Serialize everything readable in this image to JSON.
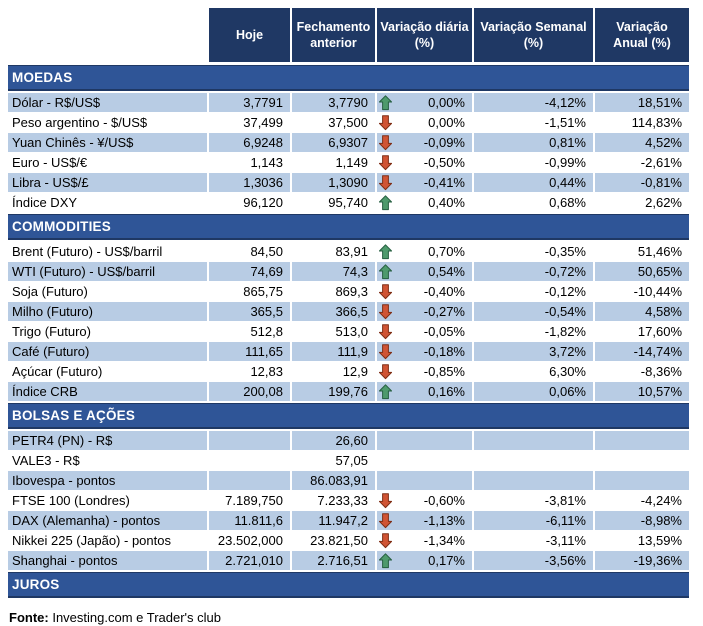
{
  "chart_data": {
    "type": "table",
    "columns": [
      "Hoje",
      "Fechamento anterior",
      "Variação diária (%)",
      "Variação Semanal (%)",
      "Variação Anual (%)"
    ],
    "sections": [
      {
        "title": "MOEDAS",
        "first_row_shaded": true,
        "rows": [
          {
            "label": "Dólar - R$/US$",
            "hoje": "3,7791",
            "prev": "3,7790",
            "arrow": "up",
            "daily": "0,00%",
            "weekly": "-4,12%",
            "annual": "18,51%"
          },
          {
            "label": "Peso argentino - $/US$",
            "hoje": "37,499",
            "prev": "37,500",
            "arrow": "down",
            "daily": "0,00%",
            "weekly": "-1,51%",
            "annual": "114,83%"
          },
          {
            "label": "Yuan Chinês - ¥/US$",
            "hoje": "6,9248",
            "prev": "6,9307",
            "arrow": "down",
            "daily": "-0,09%",
            "weekly": "0,81%",
            "annual": "4,52%"
          },
          {
            "label": "Euro - US$/€",
            "hoje": "1,143",
            "prev": "1,149",
            "arrow": "down",
            "daily": "-0,50%",
            "weekly": "-0,99%",
            "annual": "-2,61%"
          },
          {
            "label": "Libra - US$/£",
            "hoje": "1,3036",
            "prev": "1,3090",
            "arrow": "down",
            "daily": "-0,41%",
            "weekly": "0,44%",
            "annual": "-0,81%"
          },
          {
            "label": "Índice DXY",
            "hoje": "96,120",
            "prev": "95,740",
            "arrow": "up",
            "daily": "0,40%",
            "weekly": "0,68%",
            "annual": "2,62%"
          }
        ]
      },
      {
        "title": "COMMODITIES",
        "first_row_shaded": false,
        "rows": [
          {
            "label": "Brent (Futuro) - US$/barril",
            "hoje": "84,50",
            "prev": "83,91",
            "arrow": "up",
            "daily": "0,70%",
            "weekly": "-0,35%",
            "annual": "51,46%"
          },
          {
            "label": "WTI (Futuro) - US$/barril",
            "hoje": "74,69",
            "prev": "74,3",
            "arrow": "up",
            "daily": "0,54%",
            "weekly": "-0,72%",
            "annual": "50,65%"
          },
          {
            "label": "Soja (Futuro)",
            "hoje": "865,75",
            "prev": "869,3",
            "arrow": "down",
            "daily": "-0,40%",
            "weekly": "-0,12%",
            "annual": "-10,44%"
          },
          {
            "label": "Milho (Futuro)",
            "hoje": "365,5",
            "prev": "366,5",
            "arrow": "down",
            "daily": "-0,27%",
            "weekly": "-0,54%",
            "annual": "4,58%"
          },
          {
            "label": "Trigo (Futuro)",
            "hoje": "512,8",
            "prev": "513,0",
            "arrow": "down",
            "daily": "-0,05%",
            "weekly": "-1,82%",
            "annual": "17,60%"
          },
          {
            "label": "Café (Futuro)",
            "hoje": "111,65",
            "prev": "111,9",
            "arrow": "down",
            "daily": "-0,18%",
            "weekly": "3,72%",
            "annual": "-14,74%"
          },
          {
            "label": "Açúcar (Futuro)",
            "hoje": "12,83",
            "prev": "12,9",
            "arrow": "down",
            "daily": "-0,85%",
            "weekly": "6,30%",
            "annual": "-8,36%"
          },
          {
            "label": "Índice CRB",
            "hoje": "200,08",
            "prev": "199,76",
            "arrow": "up",
            "daily": "0,16%",
            "weekly": "0,06%",
            "annual": "10,57%"
          }
        ]
      },
      {
        "title": "BOLSAS E AÇÕES",
        "first_row_shaded": true,
        "rows": [
          {
            "label": "PETR4 (PN) - R$",
            "hoje": "",
            "prev": "26,60",
            "arrow": null,
            "daily": "",
            "weekly": "",
            "annual": ""
          },
          {
            "label": "VALE3 - R$",
            "hoje": "",
            "prev": "57,05",
            "arrow": null,
            "daily": "",
            "weekly": "",
            "annual": ""
          },
          {
            "label": "Ibovespa - pontos",
            "hoje": "",
            "prev": "86.083,91",
            "arrow": null,
            "daily": "",
            "weekly": "",
            "annual": ""
          },
          {
            "label": "FTSE 100 (Londres)",
            "hoje": "7.189,750",
            "prev": "7.233,33",
            "arrow": "down",
            "daily": "-0,60%",
            "weekly": "-3,81%",
            "annual": "-4,24%"
          },
          {
            "label": "DAX (Alemanha) - pontos",
            "hoje": "11.811,6",
            "prev": "11.947,2",
            "arrow": "down",
            "daily": "-1,13%",
            "weekly": "-6,11%",
            "annual": "-8,98%"
          },
          {
            "label": "Nikkei 225 (Japão) - pontos",
            "hoje": "23.502,000",
            "prev": "23.821,50",
            "arrow": "down",
            "daily": "-1,34%",
            "weekly": "-3,11%",
            "annual": "13,59%"
          },
          {
            "label": "Shanghai - pontos",
            "hoje": "2.721,010",
            "prev": "2.716,51",
            "arrow": "up",
            "daily": "0,17%",
            "weekly": "-3,56%",
            "annual": "-19,36%"
          }
        ]
      },
      {
        "title": "JUROS",
        "first_row_shaded": true,
        "rows": []
      }
    ]
  },
  "footer": {
    "label": "Fonte:",
    "text": " Investing.com e Trader's club"
  },
  "colors": {
    "header_bg": "#1F3864",
    "section_bg": "#2F5597",
    "row_shaded": "#B8CCE4",
    "arrow_up_fill": "#4E9A6C",
    "arrow_up_stroke": "#265F41",
    "arrow_down_fill": "#D05434",
    "arrow_down_stroke": "#7E2D14"
  }
}
